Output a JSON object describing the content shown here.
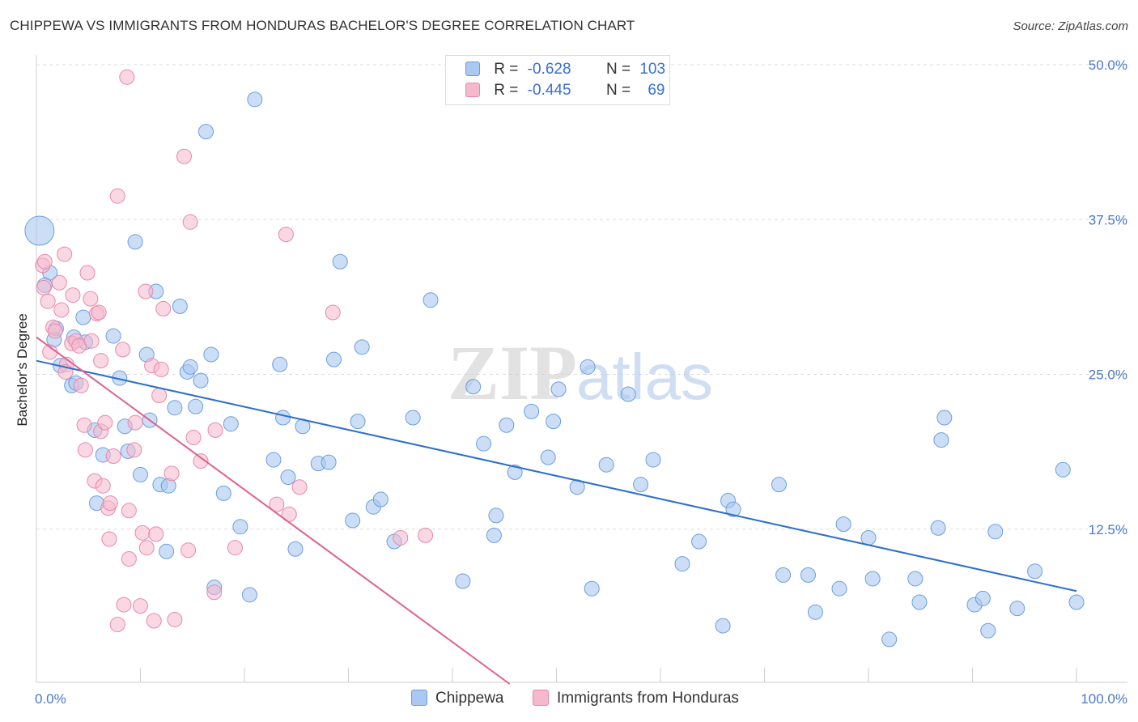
{
  "title": "CHIPPEWA VS IMMIGRANTS FROM HONDURAS BACHELOR'S DEGREE CORRELATION CHART",
  "source": "Source: ZipAtlas.com",
  "watermark": {
    "zip": "ZIP",
    "atlas": "atlas"
  },
  "legend": {
    "rows": [
      {
        "r_label": "R =",
        "r_value": "-0.628",
        "n_label": "N =",
        "n_value": "103"
      },
      {
        "r_label": "R =",
        "r_value": "-0.445",
        "n_label": "N =",
        "n_value": "69"
      }
    ]
  },
  "colors": {
    "chippewa_fill": "#aac8f0",
    "chippewa_stroke": "#6a9ee0",
    "chippewa_line": "#2e6fcc",
    "honduras_fill": "#f5b8cc",
    "honduras_stroke": "#e888a8",
    "honduras_line": "#e0608f",
    "grid": "#dddddd",
    "tick_text": "#4a78c8"
  },
  "chart_data": {
    "type": "scatter",
    "title": "CHIPPEWA VS IMMIGRANTS FROM HONDURAS BACHELOR'S DEGREE CORRELATION CHART",
    "xlabel": "",
    "ylabel": "Bachelor's Degree",
    "xlim": [
      0,
      100
    ],
    "ylim": [
      0,
      50
    ],
    "x_tick_labels": [
      "0.0%",
      "100.0%"
    ],
    "y_ticks": [
      12.5,
      25.0,
      37.5,
      50.0
    ],
    "y_tick_labels": [
      "12.5%",
      "25.0%",
      "37.5%",
      "50.0%"
    ],
    "grid": true,
    "legend_position": "top-center",
    "series": [
      {
        "name": "Chippewa",
        "R": -0.628,
        "N": 103,
        "trend": {
          "x": [
            0,
            100
          ],
          "y": [
            26.1,
            7.5
          ]
        },
        "points": [
          [
            0.3,
            36.6
          ],
          [
            1.3,
            33.2
          ],
          [
            0.8,
            32.2
          ],
          [
            1.9,
            28.7
          ],
          [
            1.7,
            27.8
          ],
          [
            2.3,
            25.7
          ],
          [
            3.6,
            28.0
          ],
          [
            4.5,
            29.6
          ],
          [
            3.4,
            24.1
          ],
          [
            3.8,
            24.3
          ],
          [
            4.7,
            27.6
          ],
          [
            5.6,
            20.5
          ],
          [
            5.8,
            14.6
          ],
          [
            6.4,
            18.5
          ],
          [
            7.4,
            28.1
          ],
          [
            8.0,
            24.7
          ],
          [
            8.5,
            20.8
          ],
          [
            8.8,
            18.8
          ],
          [
            9.5,
            35.7
          ],
          [
            10.0,
            16.9
          ],
          [
            10.6,
            26.6
          ],
          [
            10.9,
            21.3
          ],
          [
            11.5,
            31.7
          ],
          [
            11.9,
            16.1
          ],
          [
            12.5,
            10.7
          ],
          [
            12.7,
            16.0
          ],
          [
            13.3,
            22.3
          ],
          [
            13.8,
            30.5
          ],
          [
            14.5,
            25.2
          ],
          [
            14.8,
            25.6
          ],
          [
            15.3,
            22.4
          ],
          [
            15.8,
            24.5
          ],
          [
            16.3,
            44.6
          ],
          [
            16.8,
            26.6
          ],
          [
            17.1,
            7.8
          ],
          [
            18.0,
            15.4
          ],
          [
            18.7,
            21.0
          ],
          [
            19.6,
            12.7
          ],
          [
            20.5,
            7.2
          ],
          [
            21.0,
            47.2
          ],
          [
            22.8,
            18.1
          ],
          [
            23.4,
            25.8
          ],
          [
            23.7,
            21.5
          ],
          [
            24.2,
            16.7
          ],
          [
            24.9,
            10.9
          ],
          [
            25.6,
            20.8
          ],
          [
            27.1,
            17.8
          ],
          [
            28.1,
            17.9
          ],
          [
            28.6,
            26.2
          ],
          [
            29.2,
            34.1
          ],
          [
            30.4,
            13.2
          ],
          [
            30.9,
            21.2
          ],
          [
            31.3,
            27.2
          ],
          [
            32.4,
            14.3
          ],
          [
            33.1,
            14.9
          ],
          [
            34.4,
            11.5
          ],
          [
            36.2,
            21.5
          ],
          [
            37.9,
            31.0
          ],
          [
            41.0,
            8.3
          ],
          [
            42.0,
            24.0
          ],
          [
            43.0,
            19.4
          ],
          [
            44.0,
            12.0
          ],
          [
            44.2,
            13.6
          ],
          [
            45.2,
            20.9
          ],
          [
            46.0,
            17.1
          ],
          [
            47.6,
            22.0
          ],
          [
            49.2,
            18.3
          ],
          [
            49.7,
            21.2
          ],
          [
            50.2,
            23.8
          ],
          [
            52.0,
            15.9
          ],
          [
            53.0,
            25.6
          ],
          [
            53.4,
            7.7
          ],
          [
            54.8,
            17.7
          ],
          [
            56.9,
            23.4
          ],
          [
            58.1,
            16.1
          ],
          [
            59.3,
            18.1
          ],
          [
            62.1,
            9.7
          ],
          [
            63.7,
            11.5
          ],
          [
            66.0,
            4.7
          ],
          [
            66.5,
            14.8
          ],
          [
            67.0,
            14.1
          ],
          [
            71.4,
            16.1
          ],
          [
            71.8,
            8.8
          ],
          [
            74.2,
            8.8
          ],
          [
            74.9,
            5.8
          ],
          [
            77.2,
            7.7
          ],
          [
            77.6,
            12.9
          ],
          [
            80.0,
            11.8
          ],
          [
            80.4,
            8.5
          ],
          [
            82.0,
            3.6
          ],
          [
            84.5,
            8.5
          ],
          [
            84.9,
            6.6
          ],
          [
            86.7,
            12.6
          ],
          [
            87.0,
            19.7
          ],
          [
            87.3,
            21.5
          ],
          [
            90.2,
            6.4
          ],
          [
            91.0,
            6.9
          ],
          [
            91.5,
            4.3
          ],
          [
            92.2,
            12.3
          ],
          [
            94.3,
            6.1
          ],
          [
            96.0,
            9.1
          ],
          [
            98.7,
            17.3
          ],
          [
            100,
            6.6
          ]
        ]
      },
      {
        "name": "Immigrants from Honduras",
        "R": -0.445,
        "N": 69,
        "trend": {
          "x": [
            0,
            45.5
          ],
          "y": [
            28.0,
            0
          ]
        },
        "points": [
          [
            0.6,
            33.8
          ],
          [
            0.8,
            34.1
          ],
          [
            0.7,
            32.0
          ],
          [
            1.1,
            30.9
          ],
          [
            2.2,
            32.4
          ],
          [
            1.6,
            28.8
          ],
          [
            1.8,
            28.5
          ],
          [
            2.7,
            34.7
          ],
          [
            2.4,
            30.2
          ],
          [
            1.3,
            26.8
          ],
          [
            3.4,
            27.5
          ],
          [
            2.9,
            25.8
          ],
          [
            2.8,
            25.2
          ],
          [
            3.5,
            31.4
          ],
          [
            3.8,
            27.7
          ],
          [
            4.1,
            27.3
          ],
          [
            4.3,
            24.1
          ],
          [
            4.6,
            20.9
          ],
          [
            4.7,
            18.9
          ],
          [
            4.9,
            33.2
          ],
          [
            5.3,
            27.7
          ],
          [
            5.2,
            31.1
          ],
          [
            5.8,
            29.9
          ],
          [
            6.0,
            30.0
          ],
          [
            6.2,
            26.1
          ],
          [
            5.6,
            16.4
          ],
          [
            6.4,
            16.0
          ],
          [
            6.2,
            20.4
          ],
          [
            6.6,
            21.1
          ],
          [
            6.9,
            14.2
          ],
          [
            7.0,
            11.7
          ],
          [
            7.1,
            14.6
          ],
          [
            7.4,
            18.4
          ],
          [
            7.8,
            39.4
          ],
          [
            7.8,
            4.8
          ],
          [
            8.3,
            27.0
          ],
          [
            8.4,
            6.4
          ],
          [
            8.7,
            49.0
          ],
          [
            8.9,
            14.0
          ],
          [
            8.9,
            10.1
          ],
          [
            9.4,
            18.9
          ],
          [
            9.5,
            21.1
          ],
          [
            10.0,
            6.3
          ],
          [
            10.2,
            12.2
          ],
          [
            10.5,
            31.7
          ],
          [
            10.6,
            11.0
          ],
          [
            11.1,
            25.7
          ],
          [
            11.3,
            5.1
          ],
          [
            11.5,
            12.1
          ],
          [
            11.8,
            23.3
          ],
          [
            12.0,
            25.4
          ],
          [
            12.2,
            30.3
          ],
          [
            13.0,
            17.0
          ],
          [
            13.3,
            5.2
          ],
          [
            14.2,
            42.6
          ],
          [
            14.6,
            10.8
          ],
          [
            14.8,
            37.3
          ],
          [
            15.1,
            19.9
          ],
          [
            15.8,
            18.0
          ],
          [
            17.1,
            7.4
          ],
          [
            17.2,
            20.5
          ],
          [
            19.1,
            11.0
          ],
          [
            23.1,
            14.5
          ],
          [
            24.0,
            36.3
          ],
          [
            24.3,
            13.7
          ],
          [
            25.3,
            15.9
          ],
          [
            28.5,
            30.0
          ],
          [
            35.0,
            11.8
          ],
          [
            37.4,
            12.0
          ]
        ]
      }
    ]
  },
  "bottom_legend": [
    {
      "label": "Chippewa"
    },
    {
      "label": "Immigrants from Honduras"
    }
  ]
}
